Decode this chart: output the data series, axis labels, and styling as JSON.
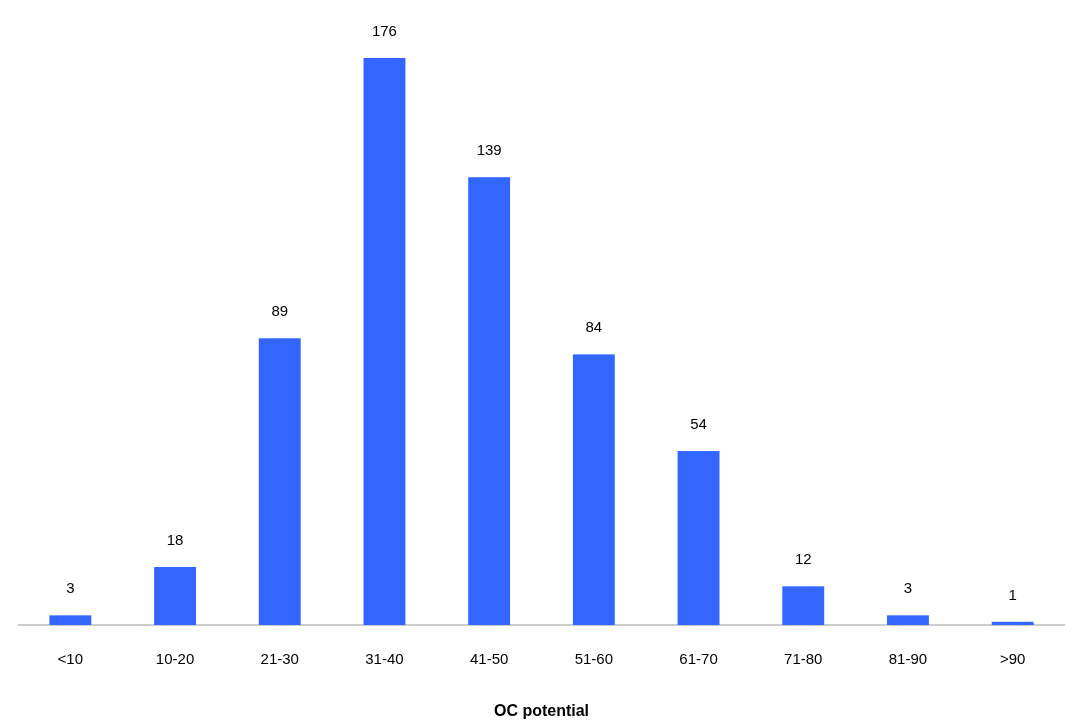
{
  "chart_data": {
    "type": "bar",
    "xlabel": "OC potential",
    "categories": [
      "<10",
      "10-20",
      "21-30",
      "31-40",
      "41-50",
      "51-60",
      "61-70",
      "71-80",
      "81-90",
      ">90"
    ],
    "values": [
      3,
      18,
      89,
      176,
      139,
      84,
      54,
      12,
      3,
      1
    ],
    "color": "#3366ff",
    "data_labels": true
  }
}
